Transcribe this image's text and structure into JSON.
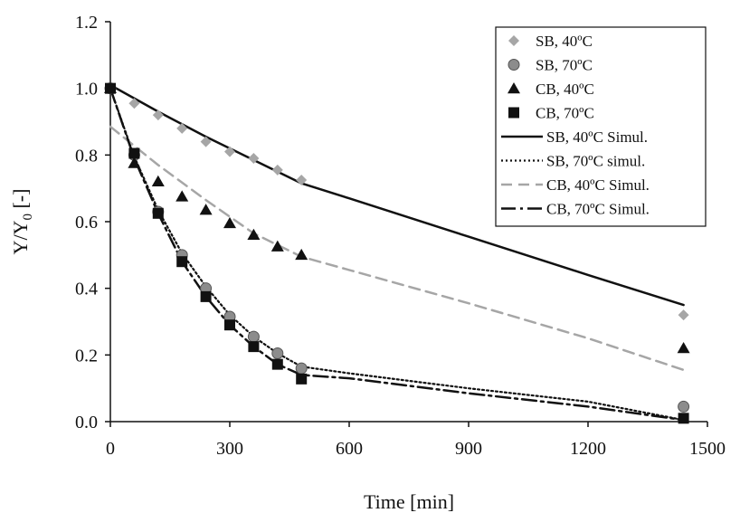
{
  "chart_data": {
    "type": "scatter",
    "xlabel": "Time [min]",
    "ylabel_main": "Y/Y",
    "ylabel_sub": "0",
    "ylabel_suffix": " [-]",
    "xlim": [
      0,
      1500
    ],
    "ylim": [
      0.0,
      1.2
    ],
    "x_ticks": [
      0,
      300,
      600,
      900,
      1200,
      1500
    ],
    "x_tick_labels": [
      "0",
      "300",
      "600",
      "900",
      "1200",
      "1500"
    ],
    "y_ticks": [
      0.0,
      0.2,
      0.4,
      0.6,
      0.8,
      1.0,
      1.2
    ],
    "y_tick_labels": [
      "0.0",
      "0.2",
      "0.4",
      "0.6",
      "0.8",
      "1.0",
      "1.2"
    ],
    "grid": false,
    "legend_position": "top-right",
    "series": [
      {
        "name": "SB, 40ºC",
        "kind": "points",
        "marker": "diamond",
        "color": "#a6a6a6",
        "x": [
          0,
          60,
          120,
          180,
          240,
          300,
          360,
          420,
          480,
          1440
        ],
        "y": [
          1.0,
          0.955,
          0.92,
          0.88,
          0.84,
          0.81,
          0.79,
          0.755,
          0.725,
          0.32
        ]
      },
      {
        "name": "SB, 70ºC",
        "kind": "points",
        "marker": "circle",
        "color": "#8c8c8c",
        "x": [
          0,
          60,
          120,
          180,
          240,
          300,
          360,
          420,
          480,
          1440
        ],
        "y": [
          1.0,
          0.8,
          0.63,
          0.5,
          0.4,
          0.315,
          0.255,
          0.205,
          0.16,
          0.045
        ]
      },
      {
        "name": "CB, 40ºC",
        "kind": "points",
        "marker": "triangle",
        "color": "#111111",
        "x": [
          0,
          60,
          120,
          180,
          240,
          300,
          360,
          420,
          480,
          1440
        ],
        "y": [
          1.0,
          0.775,
          0.72,
          0.675,
          0.635,
          0.595,
          0.56,
          0.525,
          0.5,
          0.22
        ]
      },
      {
        "name": "CB, 70ºC",
        "kind": "points",
        "marker": "square",
        "color": "#111111",
        "x": [
          0,
          60,
          120,
          180,
          240,
          300,
          360,
          420,
          480,
          1440
        ],
        "y": [
          1.0,
          0.805,
          0.625,
          0.48,
          0.375,
          0.29,
          0.225,
          0.172,
          0.128,
          0.01
        ]
      },
      {
        "name": "SB, 40ºC Simul.",
        "kind": "line",
        "dash": "",
        "color": "#111111",
        "width": 2.5,
        "x": [
          0,
          120,
          240,
          360,
          480,
          600,
          900,
          1200,
          1440
        ],
        "y": [
          1.01,
          0.93,
          0.855,
          0.785,
          0.715,
          0.67,
          0.555,
          0.44,
          0.35
        ]
      },
      {
        "name": "SB, 70ºC simul.",
        "kind": "line",
        "dash": "2,3",
        "color": "#111111",
        "width": 2.2,
        "x": [
          0,
          60,
          120,
          180,
          240,
          300,
          360,
          420,
          480,
          600,
          900,
          1200,
          1440
        ],
        "y": [
          1.0,
          0.795,
          0.635,
          0.505,
          0.405,
          0.32,
          0.255,
          0.205,
          0.165,
          0.145,
          0.1,
          0.06,
          0.005
        ]
      },
      {
        "name": "CB, 40ºC Simul.",
        "kind": "line",
        "dash": "12,7",
        "color": "#a6a6a6",
        "width": 2.5,
        "x": [
          0,
          120,
          240,
          360,
          480,
          600,
          900,
          1200,
          1440
        ],
        "y": [
          0.885,
          0.77,
          0.665,
          0.565,
          0.495,
          0.455,
          0.355,
          0.25,
          0.155
        ]
      },
      {
        "name": "CB, 70ºC Simul.",
        "kind": "line",
        "dash": "16,5,3,5",
        "color": "#111111",
        "width": 2.5,
        "x": [
          0,
          60,
          120,
          180,
          240,
          300,
          360,
          420,
          480,
          600,
          900,
          1200,
          1440
        ],
        "y": [
          1.0,
          0.79,
          0.625,
          0.48,
          0.375,
          0.29,
          0.225,
          0.172,
          0.14,
          0.13,
          0.085,
          0.045,
          0.005
        ]
      }
    ]
  }
}
